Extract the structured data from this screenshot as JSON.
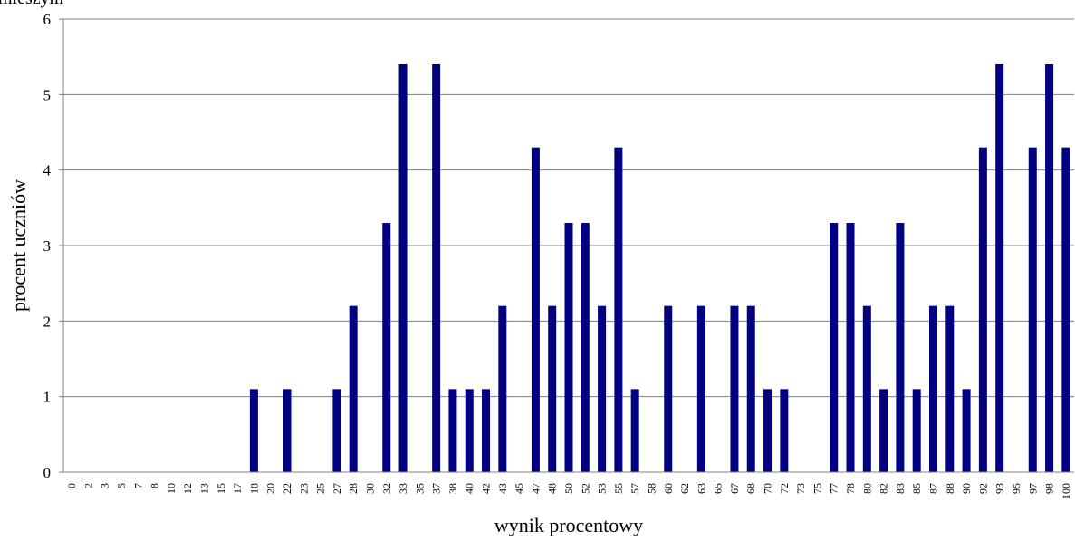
{
  "chart_data": {
    "type": "bar",
    "title": "mieszym",
    "x_label": "wynik procentowy",
    "y_label": "procent uczniów",
    "categories": [
      "0",
      "2",
      "3",
      "5",
      "7",
      "8",
      "10",
      "12",
      "13",
      "15",
      "17",
      "18",
      "20",
      "22",
      "23",
      "25",
      "27",
      "28",
      "30",
      "32",
      "33",
      "35",
      "37",
      "38",
      "40",
      "42",
      "43",
      "45",
      "47",
      "48",
      "50",
      "52",
      "53",
      "55",
      "57",
      "58",
      "60",
      "62",
      "63",
      "65",
      "67",
      "68",
      "70",
      "72",
      "73",
      "75",
      "77",
      "78",
      "80",
      "82",
      "83",
      "85",
      "87",
      "88",
      "90",
      "92",
      "93",
      "95",
      "97",
      "98",
      "100"
    ],
    "values": [
      0,
      0,
      0,
      0,
      0,
      0,
      0,
      0,
      0,
      0,
      0,
      1.1,
      0,
      1.1,
      0,
      0,
      1.1,
      2.2,
      0,
      3.3,
      5.4,
      0,
      5.4,
      1.1,
      1.1,
      1.1,
      2.2,
      0,
      4.3,
      2.2,
      3.3,
      3.3,
      2.2,
      4.3,
      1.1,
      0,
      2.2,
      0,
      2.2,
      0,
      2.2,
      2.2,
      1.1,
      1.1,
      0,
      0,
      3.3,
      3.3,
      2.2,
      1.1,
      3.3,
      1.1,
      2.2,
      2.2,
      1.1,
      4.3,
      5.4,
      0,
      4.3,
      5.4,
      4.3
    ],
    "color": "#000080",
    "ylim": [
      0,
      6
    ],
    "yticks": [
      0,
      1,
      2,
      3,
      4,
      5,
      6
    ],
    "grid": true
  }
}
